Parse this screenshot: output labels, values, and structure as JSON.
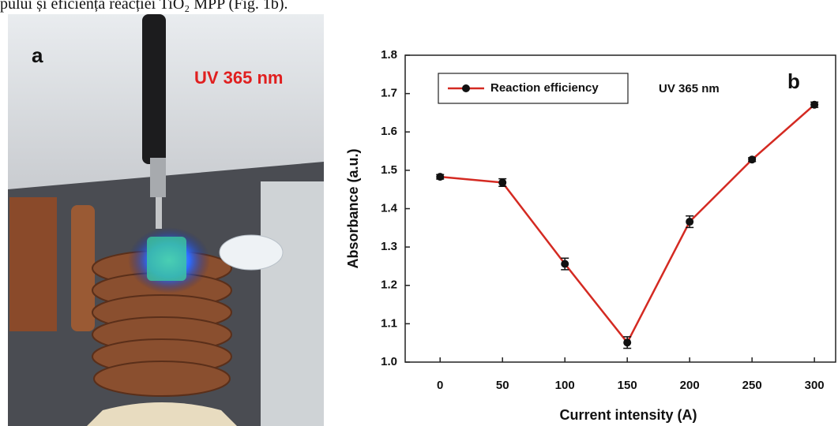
{
  "caption": "pului și eficiența reacției TiO₂ MPP (Fig. 1b).",
  "panel_a": {
    "label": "a",
    "annotation": "UV 365 nm"
  },
  "chart_data": {
    "type": "line",
    "panel_label": "b",
    "annotation": "UV 365 nm",
    "x_label": "Current intensity (A)",
    "y_label": "Absorbance (a.u.)",
    "x": [
      0,
      50,
      100,
      150,
      200,
      250,
      300
    ],
    "series": [
      {
        "name": "Reaction efficiency",
        "color": "#d42a22",
        "marker_color": "#111111",
        "values": [
          1.483,
          1.468,
          1.256,
          1.051,
          1.366,
          1.528,
          1.671
        ],
        "errors": [
          0.006,
          0.01,
          0.015,
          0.015,
          0.015,
          0.005,
          0.007
        ]
      }
    ],
    "xlim": [
      -28,
      317
    ],
    "xticks": [
      0,
      50,
      100,
      150,
      200,
      250,
      300
    ],
    "ylim": [
      1.0,
      1.8
    ],
    "yticks": [
      {
        "value": 1.0,
        "label": "1.0"
      },
      1.1,
      1.2,
      1.3,
      1.4,
      1.5,
      1.6,
      1.7,
      1.8
    ],
    "legend": "upper left",
    "grid": false
  }
}
